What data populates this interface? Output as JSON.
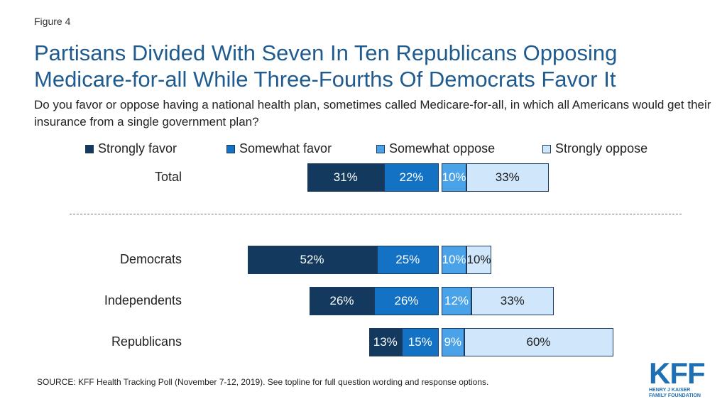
{
  "figure_label": "Figure 4",
  "title": "Partisans Divided With Seven In Ten Republicans Opposing Medicare-for-all While Three-Fourths Of Democrats Favor It",
  "subtitle": "Do you favor or oppose having a national health plan, sometimes called Medicare-for-all, in which all Americans would get their insurance from a single government plan?",
  "source": "SOURCE: KFF Health Tracking Poll (November 7-12, 2019). See topline for full question wording and response options.",
  "logo": {
    "name": "KFF",
    "line1": "HENRY J KAISER",
    "line2": "FAMILY FOUNDATION"
  },
  "colors": {
    "strongly_favor": "#133a5e",
    "somewhat_favor": "#1372c4",
    "somewhat_oppose": "#4aa3e8",
    "strongly_oppose": "#cfe6fb",
    "title": "#1f5b8f"
  },
  "chart_data": {
    "type": "bar",
    "orientation": "horizontal-diverging",
    "series": [
      {
        "name": "Strongly favor",
        "side": "favor"
      },
      {
        "name": "Somewhat favor",
        "side": "favor"
      },
      {
        "name": "Somewhat oppose",
        "side": "oppose"
      },
      {
        "name": "Strongly oppose",
        "side": "oppose"
      }
    ],
    "rows": [
      {
        "label": "Total",
        "values": [
          31,
          22,
          10,
          33
        ],
        "labels": [
          "31%",
          "22%",
          "10%",
          "33%"
        ]
      },
      {
        "label": "Democrats",
        "values": [
          52,
          25,
          10,
          10
        ],
        "labels": [
          "52%",
          "25%",
          "10%",
          "10%"
        ]
      },
      {
        "label": "Independents",
        "values": [
          26,
          26,
          12,
          33
        ],
        "labels": [
          "26%",
          "26%",
          "12%",
          "33%"
        ]
      },
      {
        "label": "Republicans",
        "values": [
          13,
          15,
          9,
          60
        ],
        "labels": [
          "13%",
          "15%",
          "9%",
          "60%"
        ]
      }
    ],
    "legend_position": "top"
  }
}
